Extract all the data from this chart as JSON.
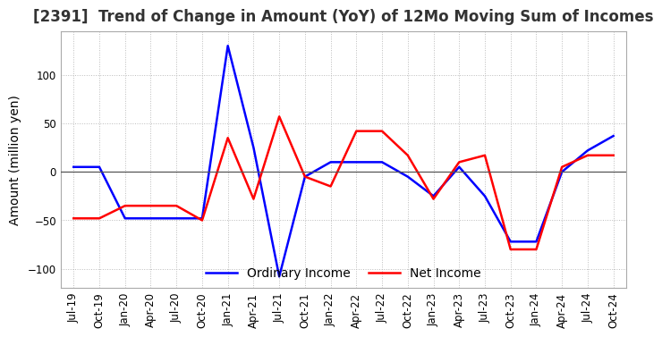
{
  "title": "[2391]  Trend of Change in Amount (YoY) of 12Mo Moving Sum of Incomes",
  "ylabel": "Amount (million yen)",
  "xlabels": [
    "Jul-19",
    "Oct-19",
    "Jan-20",
    "Apr-20",
    "Jul-20",
    "Oct-20",
    "Jan-21",
    "Apr-21",
    "Jul-21",
    "Oct-21",
    "Jan-22",
    "Apr-22",
    "Jul-22",
    "Oct-22",
    "Jan-23",
    "Apr-23",
    "Jul-23",
    "Oct-23",
    "Jan-24",
    "Apr-24",
    "Jul-24",
    "Oct-24"
  ],
  "ordinary_income": [
    5,
    5,
    -48,
    -48,
    -48,
    -48,
    130,
    25,
    -108,
    -5,
    10,
    10,
    10,
    -5,
    -25,
    5,
    -25,
    -72,
    -72,
    0,
    22,
    37
  ],
  "net_income": [
    -48,
    -48,
    -35,
    -35,
    -35,
    -50,
    35,
    -28,
    57,
    -5,
    -15,
    42,
    42,
    17,
    -28,
    10,
    17,
    -80,
    -80,
    5,
    17,
    17
  ],
  "ordinary_color": "#0000ff",
  "net_color": "#ff0000",
  "ylim": [
    -120,
    145
  ],
  "yticks": [
    -100,
    -50,
    0,
    50,
    100
  ],
  "grid_color": "#bbbbbb",
  "background_color": "#ffffff",
  "title_fontsize": 12,
  "legend_fontsize": 10,
  "tick_fontsize": 8.5,
  "ylabel_fontsize": 10
}
